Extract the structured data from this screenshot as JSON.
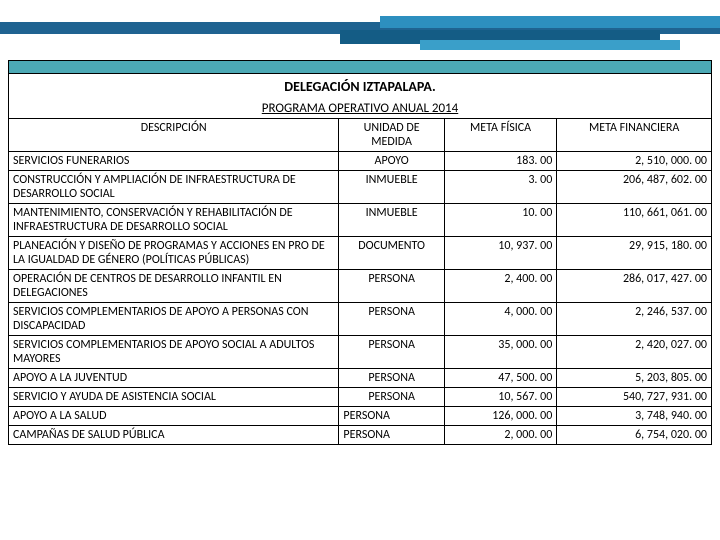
{
  "title": "DELEGACIÓN IZTAPALAPA.",
  "subtitle": "PROGRAMA OPERATIVO ANUAL 2014",
  "columns": {
    "desc": "DESCRIPCIÓN",
    "unit": "UNIDAD DE MEDIDA",
    "meta_fisica": "META FÍSICA",
    "meta_fin": "META FINANCIERA"
  },
  "rows": [
    {
      "desc": "SERVICIOS FUNERARIOS",
      "unit": "APOYO",
      "unit_align": "center",
      "mf": "183. 00",
      "mfin": "2, 510, 000. 00"
    },
    {
      "desc": "CONSTRUCCIÓN Y AMPLIACIÓN DE INFRAESTRUCTURA DE DESARROLLO SOCIAL",
      "unit": "INMUEBLE",
      "unit_align": "center",
      "mf": "3. 00",
      "mfin": "206, 487, 602. 00"
    },
    {
      "desc": "MANTENIMIENTO, CONSERVACIÓN Y REHABILITACIÓN DE INFRAESTRUCTURA DE DESARROLLO SOCIAL",
      "unit": "INMUEBLE",
      "unit_align": "center",
      "mf": "10. 00",
      "mfin": "110, 661, 061. 00"
    },
    {
      "desc": "PLANEACIÓN Y DISEÑO DE PROGRAMAS Y ACCIONES EN PRO DE LA IGUALDAD DE GÉNERO (POLÍTICAS PÚBLICAS)",
      "unit": "DOCUMENTO",
      "unit_align": "center",
      "mf": "10, 937. 00",
      "mfin": "29, 915, 180. 00"
    },
    {
      "desc": "OPERACIÓN DE CENTROS DE DESARROLLO INFANTIL EN DELEGACIONES",
      "unit": "PERSONA",
      "unit_align": "center",
      "mf": "2, 400. 00",
      "mfin": "286, 017, 427. 00"
    },
    {
      "desc": "SERVICIOS COMPLEMENTARIOS DE APOYO A PERSONAS CON DISCAPACIDAD",
      "unit": "PERSONA",
      "unit_align": "center",
      "mf": "4, 000. 00",
      "mfin": "2, 246, 537. 00"
    },
    {
      "desc": "SERVICIOS COMPLEMENTARIOS DE APOYO SOCIAL A ADULTOS MAYORES",
      "unit": "PERSONA",
      "unit_align": "center",
      "mf": "35, 000. 00",
      "mfin": "2, 420, 027. 00"
    },
    {
      "desc": "APOYO A LA JUVENTUD",
      "unit": "PERSONA",
      "unit_align": "center",
      "mf": "47, 500. 00",
      "mfin": "5, 203, 805. 00"
    },
    {
      "desc": "SERVICIO Y AYUDA DE ASISTENCIA SOCIAL",
      "unit": "PERSONA",
      "unit_align": "center",
      "mf": "10, 567. 00",
      "mfin": "540, 727, 931. 00"
    },
    {
      "desc": "APOYO A LA SALUD",
      "unit": "PERSONA",
      "unit_align": "left",
      "mf": "126, 000. 00",
      "mfin": "3, 748, 940. 00"
    },
    {
      "desc": "CAMPAÑAS DE SALUD PÚBLICA",
      "unit": "PERSONA",
      "unit_align": "left",
      "mf": "2, 000. 00",
      "mfin": "6, 754, 020. 00"
    }
  ]
}
